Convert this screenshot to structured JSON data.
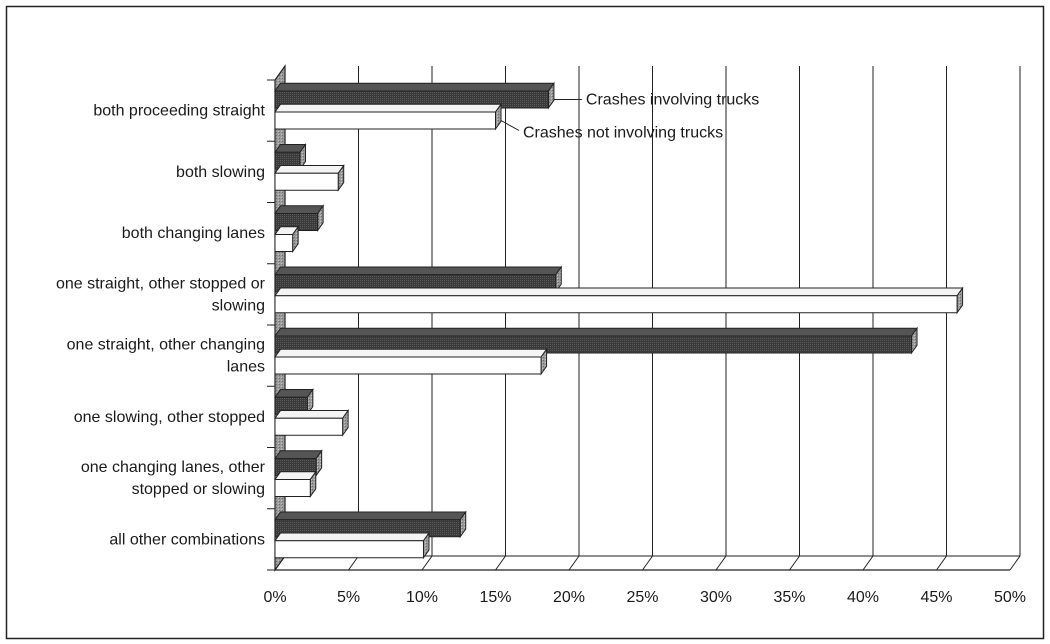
{
  "chart_data": {
    "type": "bar",
    "orientation": "horizontal",
    "categories": [
      "both proceeding straight",
      "both slowing",
      "both changing lanes",
      "one straight, other stopped or slowing",
      "one straight, other changing lanes",
      "one slowing, other stopped",
      "one changing lanes, other stopped or slowing",
      "all other combinations"
    ],
    "category_lines": [
      [
        "both proceeding straight"
      ],
      [
        "both slowing"
      ],
      [
        "both changing lanes"
      ],
      [
        "one straight, other stopped or",
        "slowing"
      ],
      [
        "one straight, other changing",
        "lanes"
      ],
      [
        "one slowing, other stopped"
      ],
      [
        "one changing lanes, other",
        "stopped or slowing"
      ],
      [
        "all other combinations"
      ]
    ],
    "series": [
      {
        "name": "Crashes involving trucks",
        "color": "#3a3a3a",
        "values": [
          18.6,
          1.7,
          2.9,
          19.1,
          43.3,
          2.2,
          2.8,
          12.6
        ]
      },
      {
        "name": "Crashes not involving trucks",
        "color": "#ffffff",
        "values": [
          15.0,
          4.3,
          1.2,
          46.4,
          18.1,
          4.6,
          2.4,
          10.1
        ]
      }
    ],
    "x_ticks": [
      "0%",
      "5%",
      "10%",
      "15%",
      "20%",
      "25%",
      "30%",
      "35%",
      "40%",
      "45%",
      "50%"
    ],
    "xlim": [
      0,
      50
    ],
    "x_unit": "%",
    "grid": true,
    "legend": "callout-top-right"
  }
}
